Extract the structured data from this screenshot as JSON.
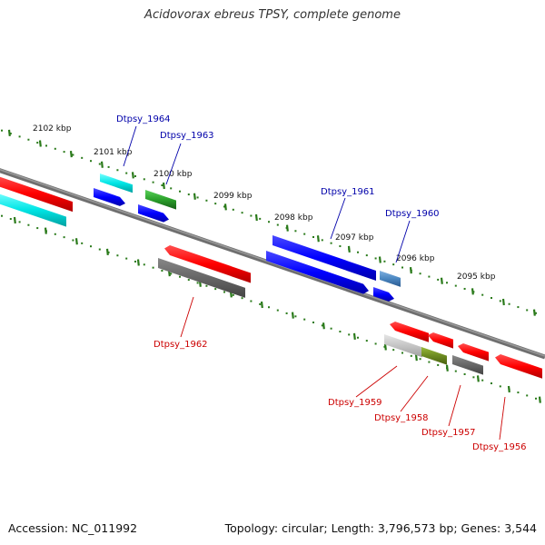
{
  "title": "Acidovorax ebreus TPSY, complete genome",
  "accession": "Accession: NC_011992",
  "topology": "Topology: circular; Length: 3,796,573 bp; Genes: 3,544",
  "colors": {
    "top_strand_label": "#0000aa",
    "bottom_strand_label": "#cc0000",
    "ticks": "#2a7a1a",
    "backbone": "#777777"
  },
  "kbp_labels": [
    "2102 kbp",
    "2101 kbp",
    "2100 kbp",
    "2099 kbp",
    "2098 kbp",
    "2097 kbp",
    "2096 kbp",
    "2095 kbp"
  ],
  "genes": [
    {
      "name": "Dtpsy_1964",
      "strand": "top",
      "color": "#0000aa"
    },
    {
      "name": "Dtpsy_1963",
      "strand": "top",
      "color": "#0000aa"
    },
    {
      "name": "Dtpsy_1961",
      "strand": "top",
      "color": "#0000aa"
    },
    {
      "name": "Dtpsy_1960",
      "strand": "top",
      "color": "#0000aa"
    },
    {
      "name": "Dtpsy_1962",
      "strand": "bottom",
      "color": "#cc0000"
    },
    {
      "name": "Dtpsy_1959",
      "strand": "bottom",
      "color": "#cc0000"
    },
    {
      "name": "Dtpsy_1958",
      "strand": "bottom",
      "color": "#cc0000"
    },
    {
      "name": "Dtpsy_1957",
      "strand": "bottom",
      "color": "#cc0000"
    },
    {
      "name": "Dtpsy_1956",
      "strand": "bottom",
      "color": "#cc0000"
    }
  ]
}
